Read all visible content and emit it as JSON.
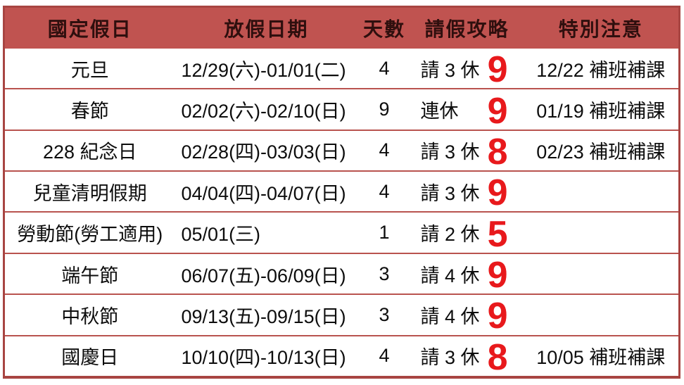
{
  "chart_data": {
    "type": "table",
    "title": "",
    "columns": [
      "國定假日",
      "放假日期",
      "天數",
      "請假攻略",
      "特別注意"
    ],
    "rows": [
      {
        "holiday": "元旦",
        "dates": "12/29(六)-01/01(二)",
        "days": "4",
        "strategy": "請 3 休",
        "total": "9",
        "note": "12/22 補班補課"
      },
      {
        "holiday": "春節",
        "dates": "02/02(六)-02/10(日)",
        "days": "9",
        "strategy": "連休",
        "total": "9",
        "note": "01/19 補班補課"
      },
      {
        "holiday": "228 紀念日",
        "dates": "02/28(四)-03/03(日)",
        "days": "4",
        "strategy": "請 3 休",
        "total": "8",
        "note": "02/23 補班補課"
      },
      {
        "holiday": "兒童清明假期",
        "dates": "04/04(四)-04/07(日)",
        "days": "4",
        "strategy": "請 3 休",
        "total": "9",
        "note": ""
      },
      {
        "holiday": "勞動節(勞工適用)",
        "dates": "05/01(三)",
        "days": "1",
        "strategy": "請 2 休",
        "total": "5",
        "note": ""
      },
      {
        "holiday": "端午節",
        "dates": "06/07(五)-06/09(日)",
        "days": "3",
        "strategy": "請 4 休",
        "total": "9",
        "note": ""
      },
      {
        "holiday": "中秋節",
        "dates": "09/13(五)-09/15(日)",
        "days": "3",
        "strategy": "請 4 休",
        "total": "9",
        "note": ""
      },
      {
        "holiday": "國慶日",
        "dates": "10/10(四)-10/13(日)",
        "days": "4",
        "strategy": "請 3 休",
        "total": "8",
        "note": "10/05 補班補課"
      }
    ],
    "layout": {
      "grid": "horizontal-row-separators",
      "header_position": "top"
    }
  },
  "colors": {
    "header_bg": "#C05350",
    "header_text": "#2F0F0E",
    "row_bg": "#FFFFFF",
    "grid_border": "#B9534F",
    "outer_border": "#A84542",
    "highlight_number": "#E8191C",
    "body_text": "#0D0D0D"
  }
}
